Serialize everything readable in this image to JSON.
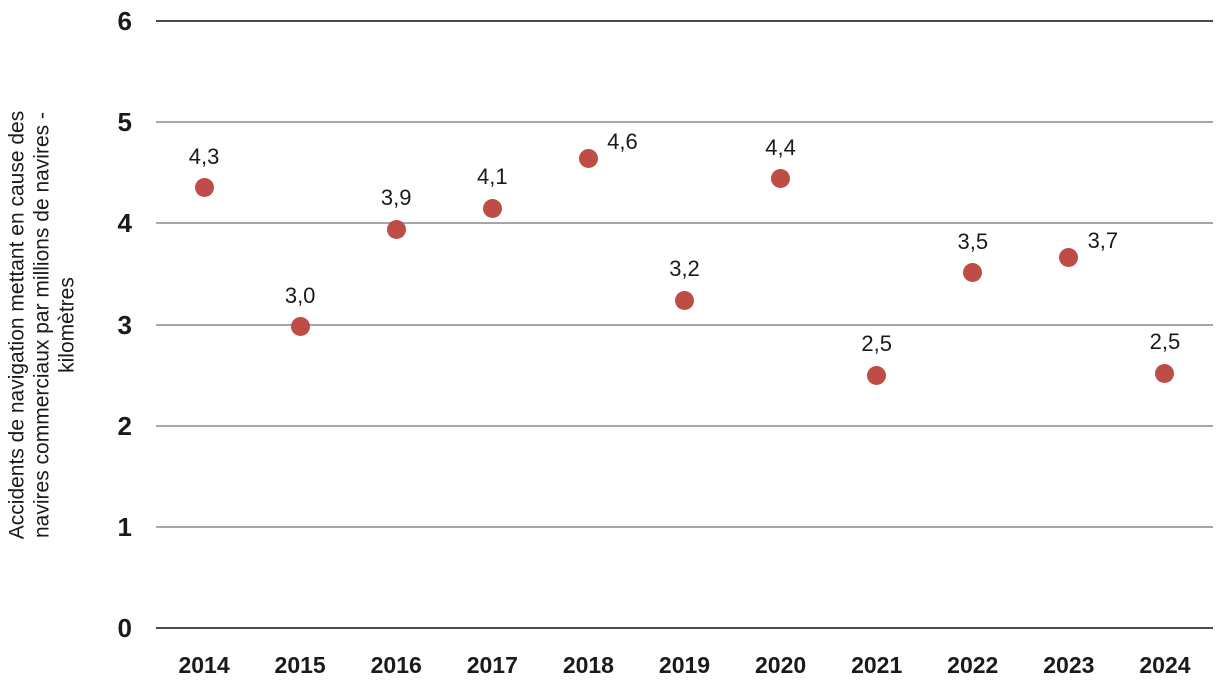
{
  "chart_data": {
    "type": "scatter",
    "title": "",
    "xlabel": "",
    "ylabel": "Accidents de navigation mettant en cause des navires commerciaux par millions de navires - kilomètres",
    "ylabel_lines": [
      "Accidents de navigation mettant en cause des",
      "navires commerciaux par millions de navires -",
      "kilomètres"
    ],
    "categories": [
      "2014",
      "2015",
      "2016",
      "2017",
      "2018",
      "2019",
      "2020",
      "2021",
      "2022",
      "2023",
      "2024"
    ],
    "values": [
      4.35,
      2.98,
      3.94,
      4.15,
      4.64,
      3.24,
      4.44,
      2.5,
      3.51,
      3.66,
      2.52
    ],
    "point_labels": [
      "4,3",
      "3,0",
      "3,9",
      "4,1",
      "4,6",
      "3,2",
      "4,4",
      "2,5",
      "3,5",
      "3,7",
      "2,5"
    ],
    "label_placement": [
      "above",
      "above",
      "above",
      "above",
      "above-right",
      "above",
      "above",
      "above",
      "above",
      "above-right",
      "above"
    ],
    "ylim": [
      0,
      6
    ],
    "yticks": [
      6,
      5,
      4,
      3,
      2,
      1,
      0
    ],
    "grid": "horizontal",
    "legend": "none",
    "colors": {
      "marker": "#be4d48",
      "axis_line": "#4a4a4a",
      "gridline": "#a6a6a6",
      "text": "#1a1a1a"
    }
  }
}
